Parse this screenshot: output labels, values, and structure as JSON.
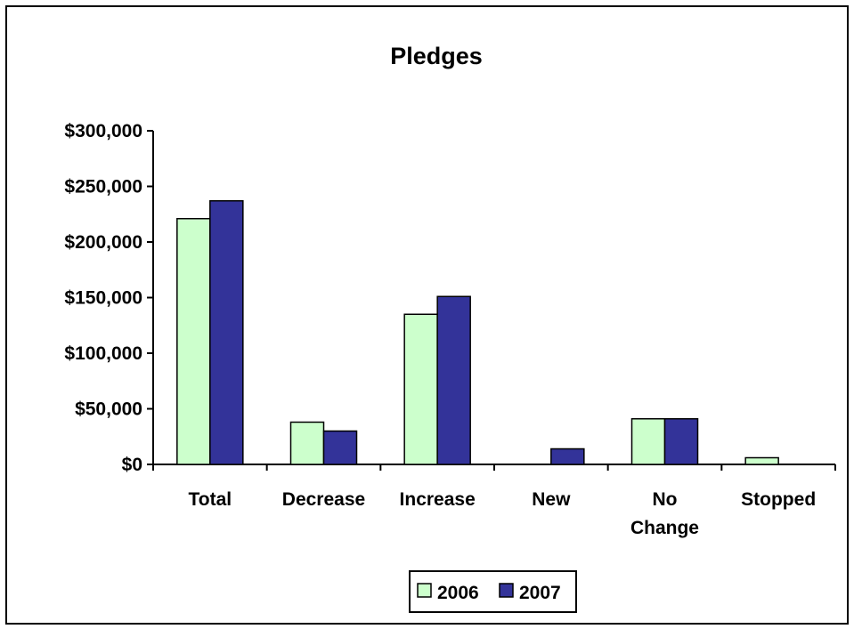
{
  "chart_data": {
    "type": "bar",
    "title": "Pledges",
    "xlabel": "",
    "ylabel": "",
    "categories": [
      [
        "Total"
      ],
      [
        "Decrease"
      ],
      [
        "Increase"
      ],
      [
        "New"
      ],
      [
        "No",
        "Change"
      ],
      [
        "Stopped"
      ]
    ],
    "series": [
      {
        "name": "2006",
        "values": [
          221000,
          38000,
          135000,
          0,
          41000,
          6000
        ],
        "color": "#ccffcc"
      },
      {
        "name": "2007",
        "values": [
          237000,
          30000,
          151000,
          14000,
          41000,
          0
        ],
        "color": "#333399"
      }
    ],
    "ylim": [
      0,
      300000
    ],
    "yticks": [
      0,
      50000,
      100000,
      150000,
      200000,
      250000,
      300000
    ],
    "ytick_labels": [
      "$0",
      "$50,000",
      "$100,000",
      "$150,000",
      "$200,000",
      "$250,000",
      "$300,000"
    ],
    "grid": false,
    "legend_position": "bottom"
  }
}
